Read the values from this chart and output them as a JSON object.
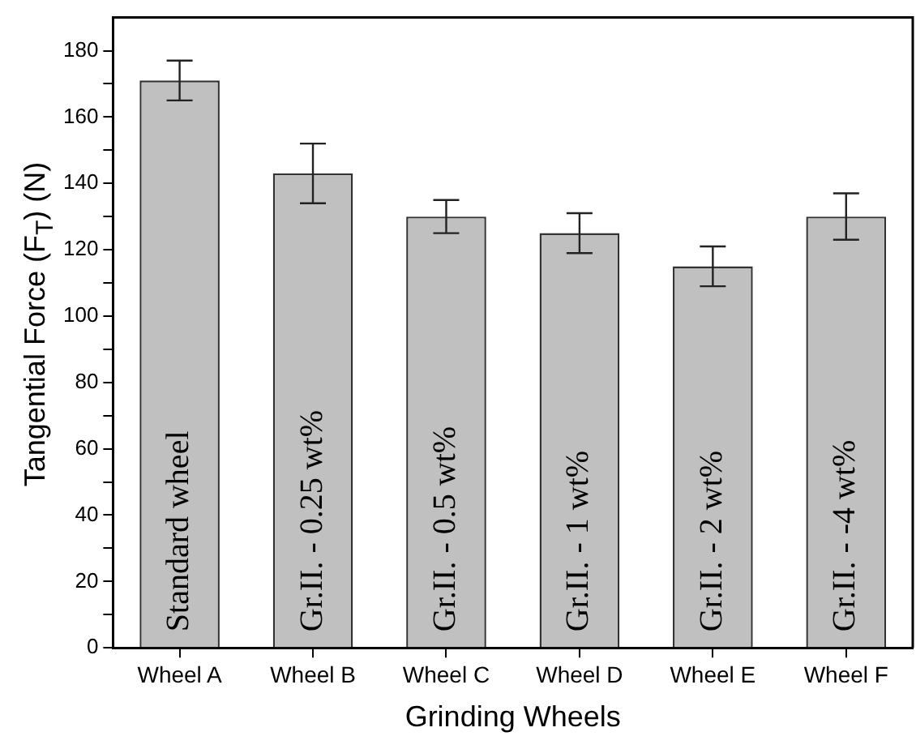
{
  "chart_data": {
    "type": "bar",
    "xlabel": "Grinding Wheels",
    "ylabel": "Tangential Force (F$_{T}$) (N)",
    "categories": [
      "Wheel A",
      "Wheel B",
      "Wheel C",
      "Wheel D",
      "Wheel E",
      "Wheel F"
    ],
    "values": [
      171,
      143,
      130,
      125,
      115,
      130
    ],
    "errors": [
      6,
      9,
      5,
      6,
      6,
      7
    ],
    "color": "#c0c0c0",
    "ylim": [
      0,
      190
    ],
    "yticks": [
      0,
      {
        "value": 10,
        "label": null
      },
      20,
      {
        "value": 30,
        "label": null
      },
      40,
      {
        "value": 50,
        "label": null
      },
      60,
      {
        "value": 70,
        "label": null
      },
      80,
      {
        "value": 90,
        "label": null
      },
      100,
      {
        "value": 110,
        "label": null
      },
      120,
      {
        "value": 130,
        "label": null
      },
      140,
      {
        "value": 150,
        "label": null
      },
      160,
      {
        "value": 170,
        "label": null
      },
      180
    ],
    "annotations": [
      "Standard wheel",
      "Gr.II. - 0.25 wt%",
      "Gr.II. - 0.5 wt%",
      "Gr.II. - 1 wt%",
      "Gr.II. - 2 wt%",
      "Gr.II. - -4 wt%"
    ],
    "grid": false,
    "legend": false
  }
}
